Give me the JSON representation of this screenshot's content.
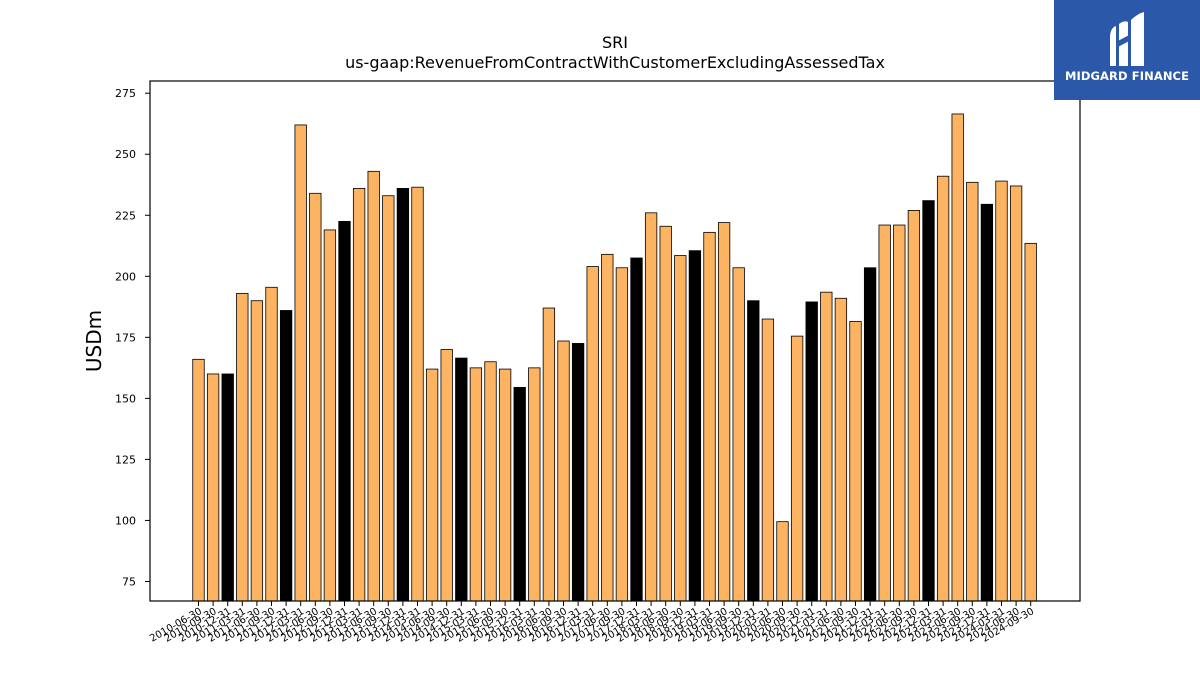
{
  "brand": {
    "name": "MIDGARD FINANCE",
    "bg_color": "#2b58a8"
  },
  "chart_data": {
    "type": "bar",
    "title": "SRI",
    "subtitle": "us-gaap:RevenueFromContractWithCustomerExcludingAssessedTax",
    "xlabel": "",
    "ylabel": "USDm",
    "ylim": [
      67,
      280
    ],
    "yticks": [
      75,
      100,
      125,
      150,
      175,
      200,
      225,
      250,
      275
    ],
    "grid": false,
    "colors": {
      "regular": "#fdb462",
      "highlight": "#000000",
      "edge": "#000000"
    },
    "categories": [
      "2010-06-30",
      "2010-09-30",
      "2010-12-31",
      "2011-03-31",
      "2011-06-30",
      "2011-09-30",
      "2011-12-31",
      "2012-03-31",
      "2012-06-30",
      "2012-09-30",
      "2012-12-31",
      "2013-03-31",
      "2013-06-30",
      "2013-09-30",
      "2013-12-31",
      "2014-03-31",
      "2014-06-30",
      "2014-09-30",
      "2014-12-31",
      "2015-03-31",
      "2015-06-30",
      "2015-09-30",
      "2015-12-31",
      "2016-03-31",
      "2016-06-30",
      "2016-09-30",
      "2016-12-31",
      "2017-03-31",
      "2017-06-30",
      "2017-09-30",
      "2017-12-31",
      "2018-03-31",
      "2018-06-30",
      "2018-09-30",
      "2018-12-31",
      "2019-03-31",
      "2019-06-30",
      "2019-09-30",
      "2019-12-31",
      "2020-03-31",
      "2020-06-30",
      "2020-09-30",
      "2020-12-31",
      "2021-03-31",
      "2021-06-30",
      "2021-09-30",
      "2021-12-31",
      "2022-03-31",
      "2022-06-30",
      "2022-09-30",
      "2022-12-31",
      "2023-03-31",
      "2023-06-30",
      "2023-09-30",
      "2023-12-31",
      "2024-03-31",
      "2024-06-30",
      "2024-09-30"
    ],
    "values": [
      166,
      160,
      160,
      193,
      190,
      195.5,
      186,
      262,
      234,
      219,
      222.5,
      236,
      243,
      233,
      236,
      236.5,
      162,
      170,
      166.5,
      162.5,
      165,
      162,
      154.5,
      162.5,
      187,
      173.5,
      172.5,
      204,
      209,
      203.5,
      207.5,
      226,
      220.5,
      208.5,
      210.5,
      218,
      222,
      203.5,
      190,
      182.5,
      99.5,
      175.5,
      189.5,
      193.5,
      191,
      181.5,
      203.5,
      221,
      221,
      227,
      231,
      241,
      266.5,
      238.5,
      229.5,
      239,
      237,
      213.5
    ],
    "highlight": [
      false,
      false,
      true,
      false,
      false,
      false,
      true,
      false,
      false,
      false,
      true,
      false,
      false,
      false,
      true,
      false,
      false,
      false,
      true,
      false,
      false,
      false,
      true,
      false,
      false,
      false,
      true,
      false,
      false,
      false,
      true,
      false,
      false,
      false,
      true,
      false,
      false,
      false,
      true,
      false,
      false,
      false,
      true,
      false,
      false,
      false,
      true,
      false,
      false,
      false,
      true,
      false,
      false,
      false,
      true,
      false,
      false,
      false
    ],
    "visible_tick_labels": [
      "2010-06-30",
      "2010-09-30",
      "2010-12-31",
      "2011-03-31",
      "2011-06-30",
      "2011-09-30",
      "2011-12-31",
      "2012-03-31",
      "2012-06-30",
      "2012-09-30",
      "2012-12-31",
      "2013-03-31",
      "2013-06-30",
      "2013-09-30",
      "2013-12-31",
      "2014-03-31",
      "2014-06-30",
      "2014-09-30",
      "2014-12-31",
      "2015-03-31",
      "2015-06-30",
      "2015-09-30",
      "2015-12-31",
      "2016-03-31",
      "2016-06-30",
      "2016-09-30",
      "2016-12-31",
      "2017-03-31",
      "2017-06-30",
      "2017-09-30",
      "2017-12-31",
      "2018-03-31",
      "2018-06-30",
      "2018-09-30",
      "2018-12-31",
      "2019-03-31",
      "2019-06-30",
      "2019-09-30",
      "2019-12-31",
      "2020-03-31",
      "2020-06-30",
      "2020-09-30",
      "2020-12-31",
      "2021-03-31",
      "2021-06-30",
      "2021-09-30",
      "2021-12-31",
      "2022-03-31",
      "2022-06-30",
      "2022-09-30",
      "2022-12-31",
      "2023-03-31",
      "2023-06-30",
      "2023-09-30",
      "2023-12-31",
      "2024-03-31",
      "2024-06-30",
      "2024-09-30"
    ]
  }
}
